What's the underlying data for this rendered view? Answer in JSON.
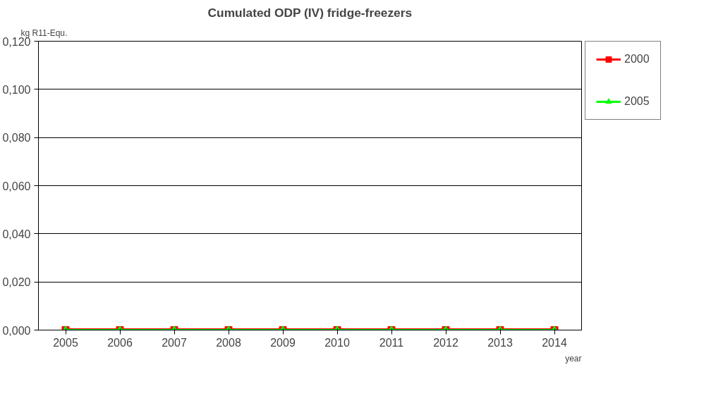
{
  "chart_data": {
    "type": "line",
    "title": "Cumulated ODP (IV) fridge-freezers",
    "xlabel": "year",
    "ylabel": "kg R11-Equ.",
    "categories": [
      "2005",
      "2006",
      "2007",
      "2008",
      "2009",
      "2010",
      "2011",
      "2012",
      "2013",
      "2014"
    ],
    "series": [
      {
        "name": "2000",
        "color": "#ff0000",
        "marker": "square",
        "values": [
          0,
          0,
          0,
          0,
          0,
          0,
          0,
          0,
          0,
          0
        ]
      },
      {
        "name": "2005",
        "color": "#00ff00",
        "marker": "triangle",
        "values": [
          0,
          0,
          0,
          0,
          0,
          0,
          0,
          0,
          0,
          0
        ]
      }
    ],
    "ylim": [
      0,
      0.12
    ],
    "yticks": [
      {
        "value": 0,
        "label": "0,000"
      },
      {
        "value": 0.02,
        "label": "0,020"
      },
      {
        "value": 0.04,
        "label": "0,040"
      },
      {
        "value": 0.06,
        "label": "0,060"
      },
      {
        "value": 0.08,
        "label": "0,080"
      },
      {
        "value": 0.1,
        "label": "0,100"
      },
      {
        "value": 0.12,
        "label": "0,120"
      }
    ],
    "grid": "y",
    "legend": "top right",
    "line_style": "solid"
  }
}
